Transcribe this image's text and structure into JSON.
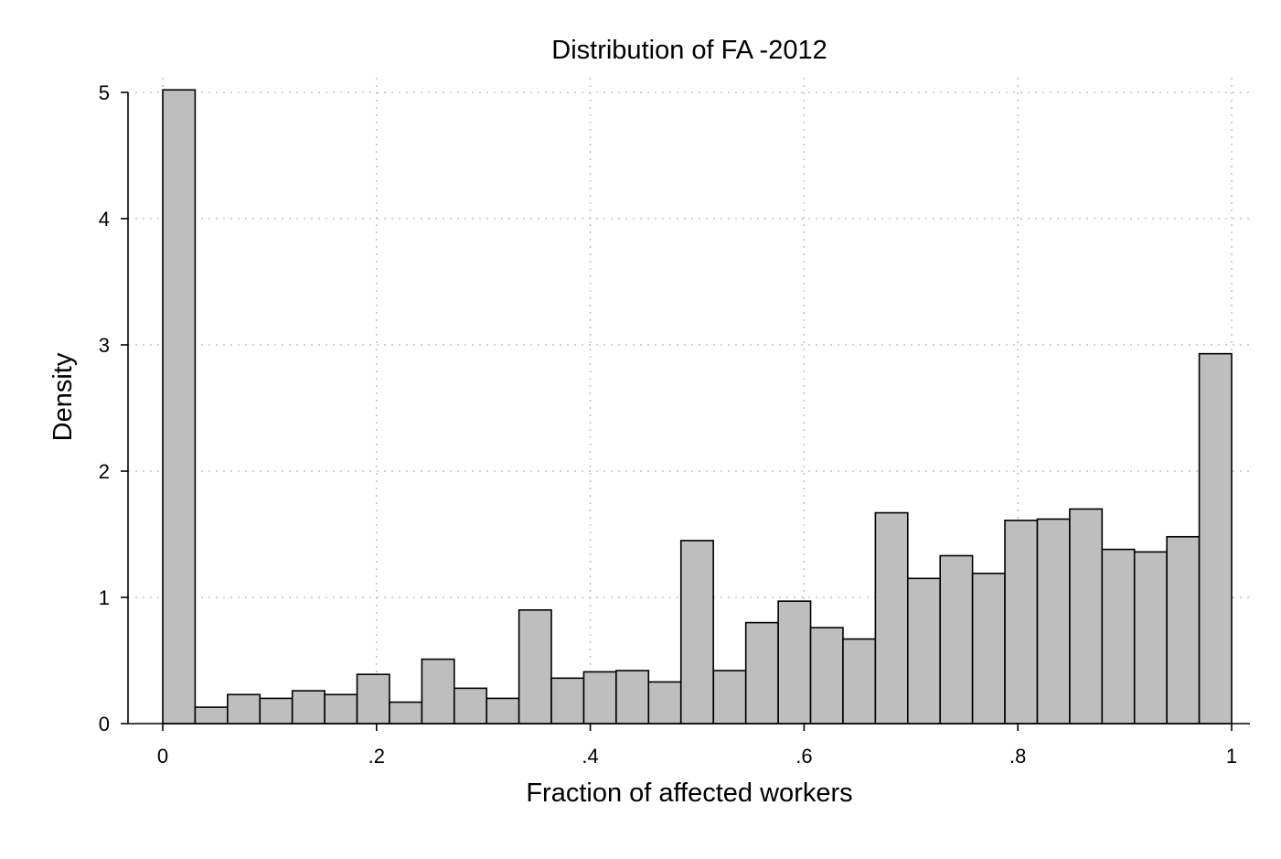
{
  "chart_data": {
    "type": "bar",
    "title": "Distribution of FA -2012",
    "xlabel": "Fraction of affected workers",
    "ylabel": "Density",
    "xlim": [
      0,
      1
    ],
    "ylim": [
      0,
      5
    ],
    "grid": true,
    "bar_color": "#bebebe",
    "edge_color": "#000000",
    "x_ticks": [
      {
        "value": 0,
        "label": "0"
      },
      {
        "value": 0.2,
        "label": ".2"
      },
      {
        "value": 0.4,
        "label": ".4"
      },
      {
        "value": 0.6,
        "label": ".6"
      },
      {
        "value": 0.8,
        "label": ".8"
      },
      {
        "value": 1,
        "label": "1"
      }
    ],
    "y_ticks": [
      {
        "value": 0,
        "label": "0"
      },
      {
        "value": 1,
        "label": "1"
      },
      {
        "value": 2,
        "label": "2"
      },
      {
        "value": 3,
        "label": "3"
      },
      {
        "value": 4,
        "label": "4"
      },
      {
        "value": 5,
        "label": "5"
      }
    ],
    "bin_width": 0.0303,
    "bins": [
      {
        "start": 0.0,
        "density": 5.02
      },
      {
        "start": 0.0303,
        "density": 0.13
      },
      {
        "start": 0.0606,
        "density": 0.23
      },
      {
        "start": 0.0909,
        "density": 0.2
      },
      {
        "start": 0.1212,
        "density": 0.26
      },
      {
        "start": 0.1515,
        "density": 0.23
      },
      {
        "start": 0.1818,
        "density": 0.39
      },
      {
        "start": 0.2121,
        "density": 0.17
      },
      {
        "start": 0.2424,
        "density": 0.51
      },
      {
        "start": 0.2727,
        "density": 0.28
      },
      {
        "start": 0.303,
        "density": 0.2
      },
      {
        "start": 0.3333,
        "density": 0.9
      },
      {
        "start": 0.3636,
        "density": 0.36
      },
      {
        "start": 0.3939,
        "density": 0.41
      },
      {
        "start": 0.4242,
        "density": 0.42
      },
      {
        "start": 0.4545,
        "density": 0.33
      },
      {
        "start": 0.4848,
        "density": 1.45
      },
      {
        "start": 0.5152,
        "density": 0.42
      },
      {
        "start": 0.5455,
        "density": 0.8
      },
      {
        "start": 0.5758,
        "density": 0.97
      },
      {
        "start": 0.6061,
        "density": 0.76
      },
      {
        "start": 0.6364,
        "density": 0.67
      },
      {
        "start": 0.6667,
        "density": 1.67
      },
      {
        "start": 0.697,
        "density": 1.15
      },
      {
        "start": 0.7273,
        "density": 1.33
      },
      {
        "start": 0.7576,
        "density": 1.19
      },
      {
        "start": 0.7879,
        "density": 1.61
      },
      {
        "start": 0.8182,
        "density": 1.62
      },
      {
        "start": 0.8485,
        "density": 1.7
      },
      {
        "start": 0.8788,
        "density": 1.38
      },
      {
        "start": 0.9091,
        "density": 1.36
      },
      {
        "start": 0.9394,
        "density": 1.48
      },
      {
        "start": 0.9697,
        "density": 2.93
      }
    ]
  }
}
